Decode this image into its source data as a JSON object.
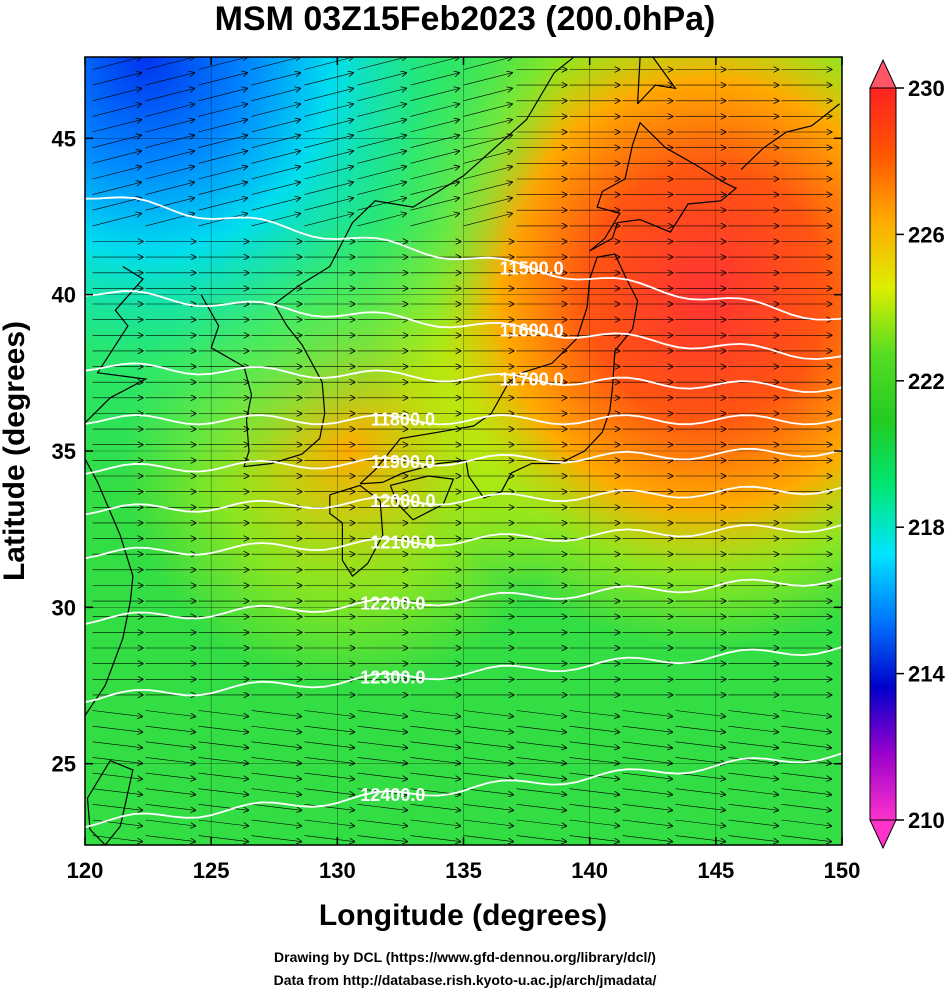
{
  "title": "MSM 03Z15Feb2023 (200.0hPa)",
  "credits": [
    "Drawing by DCL (https://www.gfd-dennou.org/library/dcl/)",
    "Data from http://database.rish.kyoto-u.ac.jp/arch/jmadata/"
  ],
  "axes": {
    "xlabel": "Longitude (degrees)",
    "ylabel": "Latitude  (degrees)",
    "xlim": [
      120,
      150
    ],
    "ylim": [
      22.4,
      47.6
    ],
    "xticks": [
      "120",
      "125",
      "130",
      "135",
      "140",
      "145",
      "150"
    ],
    "yticks": [
      "25",
      "30",
      "35",
      "40",
      "45"
    ]
  },
  "colorbar": {
    "range": [
      210,
      230
    ],
    "ticks": [
      "230",
      "226",
      "222",
      "218",
      "214",
      "210"
    ],
    "colors": [
      "#ff33cc",
      "#9900cc",
      "#0000cc",
      "#0077ff",
      "#00e5ff",
      "#00e676",
      "#22cc22",
      "#55dd22",
      "#ddee00",
      "#ffaa00",
      "#ff5500",
      "#ff2222"
    ]
  },
  "contours": [
    {
      "label": "11500.0",
      "lat_west": 43.2,
      "lat_east": 39.2,
      "label_lon": 137.7
    },
    {
      "label": "11600.0",
      "lat_west": 40.1,
      "lat_east": 38.0,
      "label_lon": 137.7
    },
    {
      "label": "11700.0",
      "lat_west": 37.7,
      "lat_east": 37.0,
      "label_lon": 137.7
    },
    {
      "label": "11800.0",
      "lat_west": 36.0,
      "lat_east": 36.0,
      "label_lon": 132.6
    },
    {
      "label": "11900.0",
      "lat_west": 34.4,
      "lat_east": 35.0,
      "label_lon": 132.6
    },
    {
      "label": "12000.0",
      "lat_west": 33.1,
      "lat_east": 33.8,
      "label_lon": 132.6
    },
    {
      "label": "12100.0",
      "lat_west": 31.7,
      "lat_east": 32.6,
      "label_lon": 132.6
    },
    {
      "label": "12200.0",
      "lat_west": 29.6,
      "lat_east": 30.9,
      "label_lon": 132.2
    },
    {
      "label": "12300.0",
      "lat_west": 27.1,
      "lat_east": 28.7,
      "label_lon": 132.2
    },
    {
      "label": "12400.0",
      "lat_west": 23.1,
      "lat_east": 25.3,
      "label_lon": 132.2
    }
  ]
}
